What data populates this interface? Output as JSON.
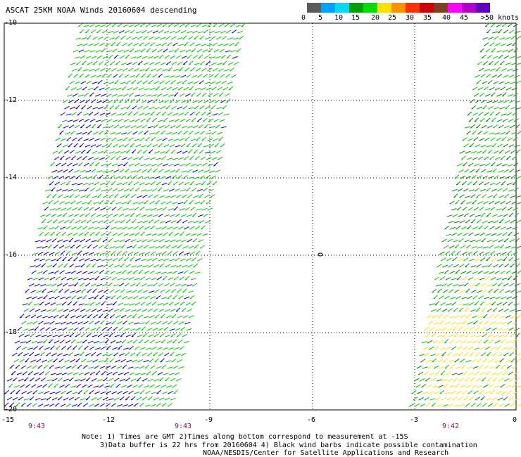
{
  "title": "ASCAT 25KM NOAA Winds 20160604 descending",
  "scale": {
    "colors": [
      "#5a5a5a",
      "#00a0ff",
      "#00d8ff",
      "#00a000",
      "#00e000",
      "#ffe000",
      "#ff9000",
      "#ff3000",
      "#d00000",
      "#804020",
      "#ff00ff",
      "#b000d0",
      "#6000c0"
    ],
    "labels": [
      "0",
      "5",
      "10",
      "15",
      "20",
      "25",
      "30",
      "35",
      "40",
      "45",
      ">50 knots"
    ]
  },
  "map": {
    "lat_range": [
      -20,
      -10
    ],
    "lon_range": [
      -15,
      0
    ],
    "lat_ticks": [
      "-10",
      "-12",
      "-14",
      "-16",
      "-18",
      "-20"
    ],
    "lon_ticks": [
      "-15",
      "-12",
      "-9",
      "-6",
      "-3",
      "0"
    ],
    "pass_times": [
      "9:43",
      "9:43",
      "9:42"
    ],
    "island_label": "0",
    "barb_colors": {
      "blue": "#0000c8",
      "green": "#00c800",
      "dark_green": "#008c00",
      "yellow": "#ffe000"
    }
  },
  "footer": {
    "line1": "Note: 1) Times are GMT 2)Times along bottom correspond to measurement at -15S",
    "line2": "3)Data buffer is 22 hrs from 20160604 4) Black wind barbs indicate possible contamination",
    "line3": "NOAA/NESDIS/Center for Satellite Applications and Research"
  }
}
